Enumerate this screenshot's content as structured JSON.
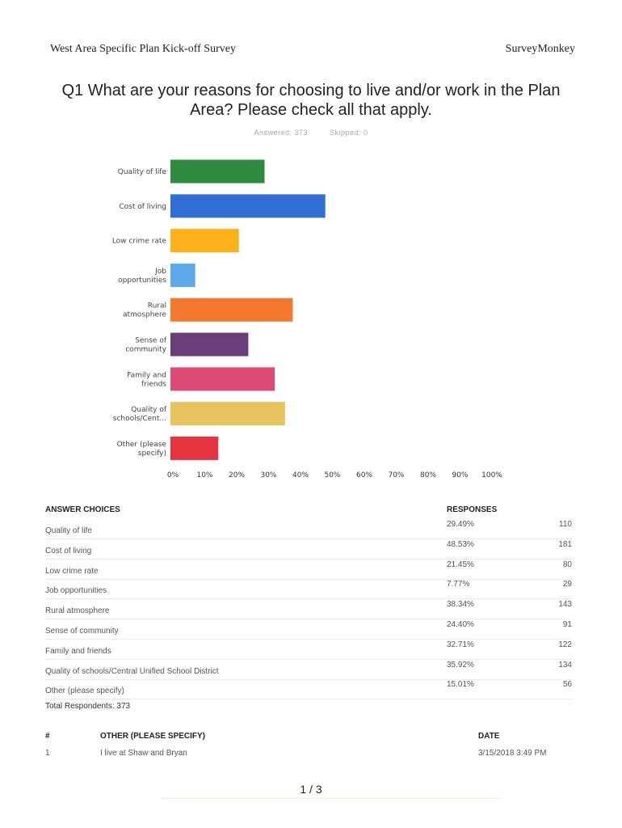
{
  "header": {
    "left": "West Area Specific Plan Kick-off Survey",
    "right": "SurveyMonkey"
  },
  "question": {
    "title": "Q1 What are your reasons for choosing to live and/or work in the Plan Area? Please check all that apply.",
    "answered": "Answered: 373",
    "skipped": "Skipped: 0"
  },
  "chart_data": {
    "type": "bar",
    "orientation": "horizontal",
    "categories": [
      [
        "Quality of life"
      ],
      [
        "Cost of living"
      ],
      [
        "Low crime rate"
      ],
      [
        "Job",
        "opportunities"
      ],
      [
        "Rural",
        "atmosphere"
      ],
      [
        "Sense of",
        "community"
      ],
      [
        "Family and",
        "friends"
      ],
      [
        "Quality of",
        "schools/Cent..."
      ],
      [
        "Other (please",
        "specify)"
      ]
    ],
    "values": [
      29.49,
      48.53,
      21.45,
      7.77,
      38.34,
      24.4,
      32.71,
      35.92,
      15.01
    ],
    "colors": [
      "#2e8b3e",
      "#2f6fd6",
      "#fbb11a",
      "#5ea9e8",
      "#f4782e",
      "#6a3e7a",
      "#e04a76",
      "#e9c35e",
      "#e5333f"
    ],
    "xticks": [
      "0%",
      "10%",
      "20%",
      "30%",
      "40%",
      "50%",
      "60%",
      "70%",
      "80%",
      "90%",
      "100%"
    ],
    "xlim": [
      0,
      100
    ],
    "grid": false,
    "title": "",
    "xlabel": "",
    "ylabel": ""
  },
  "table": {
    "col_answer": "ANSWER CHOICES",
    "col_responses": "RESPONSES",
    "rows": [
      {
        "name": "Quality of life",
        "pct": "29.49%",
        "count": "110"
      },
      {
        "name": "Cost of living",
        "pct": "48.53%",
        "count": "181"
      },
      {
        "name": "Low crime rate",
        "pct": "21.45%",
        "count": "80"
      },
      {
        "name": "Job opportunities",
        "pct": "7.77%",
        "count": "29"
      },
      {
        "name": "Rural atmosphere",
        "pct": "38.34%",
        "count": "143"
      },
      {
        "name": "Sense of community",
        "pct": "24.40%",
        "count": "91"
      },
      {
        "name": "Family and friends",
        "pct": "32.71%",
        "count": "122"
      },
      {
        "name": "Quality of schools/Central Unified School District",
        "pct": "35.92%",
        "count": "134"
      },
      {
        "name": "Other (please specify)",
        "pct": "15.01%",
        "count": "56"
      }
    ],
    "total": "Total Respondents: 373"
  },
  "other": {
    "col_num": "#",
    "col_text": "OTHER (PLEASE SPECIFY)",
    "col_date": "DATE",
    "rows": [
      {
        "num": "1",
        "text": "I live at Shaw and Bryan",
        "date": "3/15/2018 3:49 PM"
      }
    ]
  },
  "pager": "1 / 3"
}
